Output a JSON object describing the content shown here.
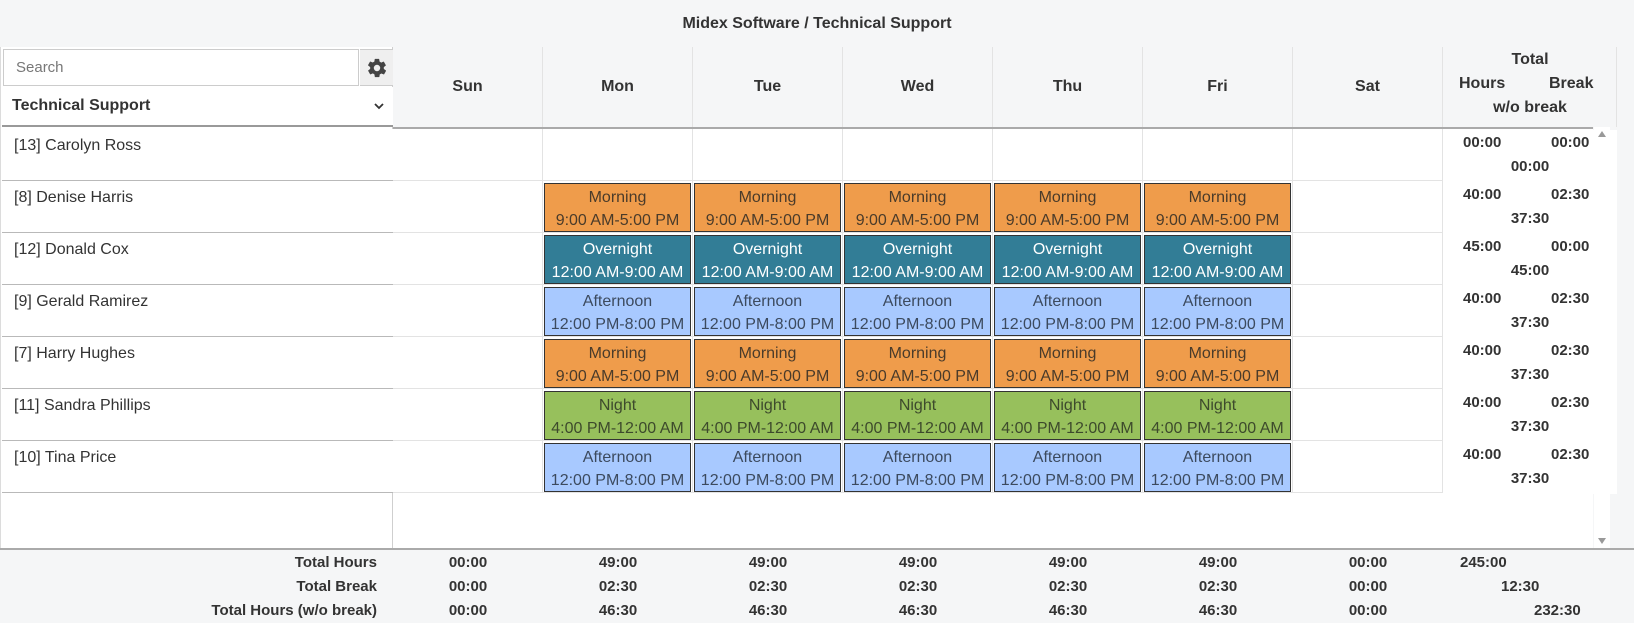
{
  "header": {
    "title": "Midex Software / Technical Support"
  },
  "search": {
    "placeholder": "Search",
    "value": ""
  },
  "settings": {
    "icon": "gear-icon"
  },
  "team_select": {
    "selected": "Technical Support",
    "icon": "chevron-down-icon"
  },
  "days": [
    "Sun",
    "Mon",
    "Tue",
    "Wed",
    "Thu",
    "Fri",
    "Sat"
  ],
  "totals_header": {
    "line1": "Total",
    "hours": "Hours",
    "break": "Break",
    "line3": "w/o break"
  },
  "shift_types": {
    "morning": {
      "name": "Morning",
      "time": "9:00 AM-5:00 PM",
      "color": "#ef9c4b"
    },
    "overnight": {
      "name": "Overnight",
      "time": "12:00 AM-9:00 AM",
      "color": "#327d96"
    },
    "afternoon": {
      "name": "Afternoon",
      "time": "12:00 PM-8:00 PM",
      "color": "#a8c9ff"
    },
    "night": {
      "name": "Night",
      "time": "4:00 PM-12:00 AM",
      "color": "#97c05c"
    }
  },
  "employees": [
    {
      "label": "[13] Carolyn Ross",
      "shifts": [
        null,
        null,
        null,
        null,
        null,
        null,
        null
      ],
      "hours": "00:00",
      "break": "00:00",
      "wo_break": "00:00"
    },
    {
      "label": "[8] Denise Harris",
      "shifts": [
        null,
        "morning",
        "morning",
        "morning",
        "morning",
        "morning",
        null
      ],
      "hours": "40:00",
      "break": "02:30",
      "wo_break": "37:30"
    },
    {
      "label": "[12] Donald Cox",
      "shifts": [
        null,
        "overnight",
        "overnight",
        "overnight",
        "overnight",
        "overnight",
        null
      ],
      "hours": "45:00",
      "break": "00:00",
      "wo_break": "45:00"
    },
    {
      "label": "[9] Gerald Ramirez",
      "shifts": [
        null,
        "afternoon",
        "afternoon",
        "afternoon",
        "afternoon",
        "afternoon",
        null
      ],
      "hours": "40:00",
      "break": "02:30",
      "wo_break": "37:30"
    },
    {
      "label": "[7] Harry Hughes",
      "shifts": [
        null,
        "morning",
        "morning",
        "morning",
        "morning",
        "morning",
        null
      ],
      "hours": "40:00",
      "break": "02:30",
      "wo_break": "37:30"
    },
    {
      "label": "[11] Sandra Phillips",
      "shifts": [
        null,
        "night",
        "night",
        "night",
        "night",
        "night",
        null
      ],
      "hours": "40:00",
      "break": "02:30",
      "wo_break": "37:30"
    },
    {
      "label": "[10] Tina Price",
      "shifts": [
        null,
        "afternoon",
        "afternoon",
        "afternoon",
        "afternoon",
        "afternoon",
        null
      ],
      "hours": "40:00",
      "break": "02:30",
      "wo_break": "37:30"
    }
  ],
  "footer": {
    "labels": {
      "total_hours": "Total Hours",
      "total_break": "Total Break",
      "total_wo_break": "Total Hours (w/o break)"
    },
    "total_hours": [
      "00:00",
      "49:00",
      "49:00",
      "49:00",
      "49:00",
      "49:00",
      "00:00"
    ],
    "total_break": [
      "00:00",
      "02:30",
      "02:30",
      "02:30",
      "02:30",
      "02:30",
      "00:00"
    ],
    "total_wo_break": [
      "00:00",
      "46:30",
      "46:30",
      "46:30",
      "46:30",
      "46:30",
      "00:00"
    ],
    "grand_hours": "245:00",
    "grand_break": "12:30",
    "grand_wo_break": "232:30"
  }
}
